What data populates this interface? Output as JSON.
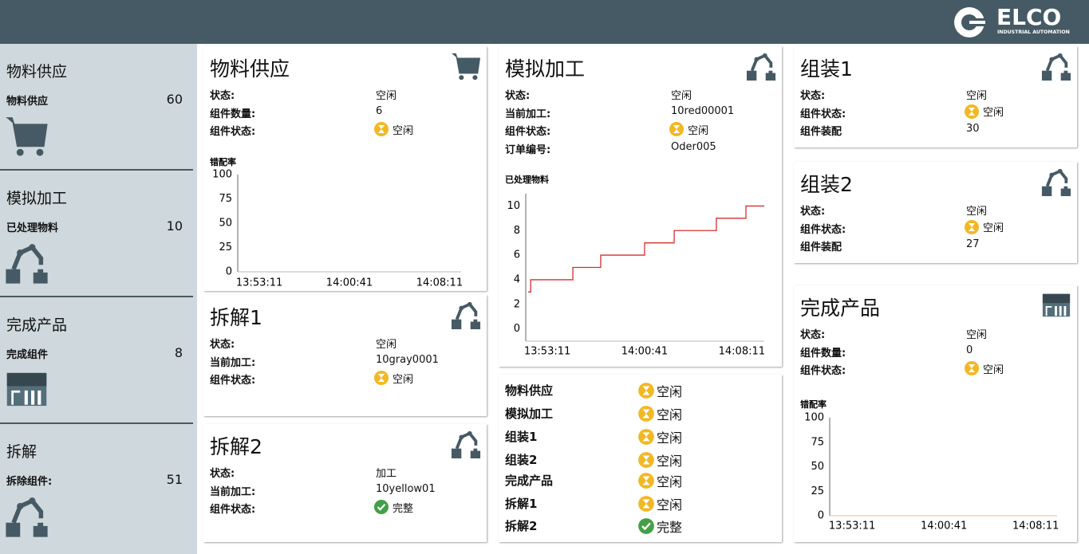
{
  "header": {
    "logo": "ELCO",
    "logo_subtitle": "INDUSTRIAL AUTOMATION"
  },
  "sidebar": [
    {
      "title": "物料供应",
      "label": "物料供应",
      "value": 60
    },
    {
      "title": "模拟加工",
      "label": "已处理物料",
      "value": 10
    },
    {
      "title": "完成产品",
      "label": "完成组件",
      "value": 8
    },
    {
      "title": "拆解",
      "label": "拆除组件:",
      "value": 51
    }
  ],
  "cards": [
    {
      "title": "物料供应",
      "fields": [
        {
          "label": "状态:",
          "value": "空闲"
        },
        {
          "label": "组件数量:",
          "value": 6
        },
        {
          "label": "组件状态:",
          "value": "空闲",
          "icon": "wait"
        }
      ],
      "chart_data": {
        "type": "line",
        "title": "错配率",
        "xlim": [
          "13:51:23",
          "14:09:59"
        ],
        "xticks": [
          "13:53:11",
          "14:00:41",
          "14:08:11"
        ],
        "ylim": [
          0,
          100
        ],
        "yticks": [
          0,
          25,
          50,
          75,
          100
        ]
      }
    },
    {
      "title": "拆解1",
      "fields": [
        {
          "label": "状态:",
          "value": "空闲"
        },
        {
          "label": "当前加工:",
          "value": "10gray0001"
        },
        {
          "label": "组件状态:",
          "value": "空闲",
          "icon": "wait"
        }
      ]
    },
    {
      "title": "拆解2",
      "fields": [
        {
          "label": "状态:",
          "value": "加工"
        },
        {
          "label": "当前加工:",
          "value": "10yellow01"
        },
        {
          "label": "组件状态:",
          "value": "完整",
          "icon": "done"
        }
      ]
    },
    {
      "title": "模拟加工",
      "fields": [
        {
          "label": "状态:",
          "value": "空闲"
        },
        {
          "label": "当前加工:",
          "value": "10red00001"
        },
        {
          "label": "组件状态:",
          "value": "空闲",
          "icon": "wait"
        },
        {
          "label": "订单编号:",
          "value": "Oder005"
        }
      ],
      "chart_data": {
        "type": "step",
        "title": "已处理物料",
        "x": [
          "13:51:42",
          "13:51:54",
          "13:55:09",
          "13:57:18",
          "14:00:41",
          "14:02:58",
          "14:06:13",
          "14:08:30",
          "14:09:55"
        ],
        "values": [
          3,
          4,
          5,
          6,
          7,
          8,
          9,
          10,
          10
        ],
        "color": "#d32f2f",
        "xlim": [
          "13:51:31",
          "14:09:55"
        ],
        "xticks": [
          "13:53:11",
          "14:00:41",
          "14:08:11"
        ],
        "ylim": [
          -1,
          11
        ],
        "yticks": [
          0,
          2,
          4,
          6,
          8,
          10
        ]
      }
    },
    {
      "title": "组装1",
      "fields": [
        {
          "label": "状态:",
          "value": "空闲"
        },
        {
          "label": "组件状态:",
          "value": "空闲",
          "icon": "wait"
        },
        {
          "label": "组件装配",
          "value": 30
        }
      ]
    },
    {
      "title": "组装2",
      "fields": [
        {
          "label": "状态:",
          "value": "空闲"
        },
        {
          "label": "组件状态:",
          "value": "空闲",
          "icon": "wait"
        },
        {
          "label": "组件装配",
          "value": 27
        }
      ]
    },
    {
      "title": "完成产品",
      "fields": [
        {
          "label": "状态:",
          "value": "空闲"
        },
        {
          "label": "组件数量:",
          "value": 0
        },
        {
          "label": "组件状态:",
          "value": "空闲",
          "icon": "wait"
        }
      ],
      "chart_data": {
        "type": "line",
        "title": "错配率",
        "x": [
          "13:51:21",
          "14:09:56"
        ],
        "values": [
          0,
          0
        ],
        "color": "#f4c7a1",
        "xlim": [
          "13:51:21",
          "14:09:56"
        ],
        "xticks": [
          "13:53:11",
          "14:00:41",
          "14:08:11"
        ],
        "ylim": [
          0,
          100
        ],
        "yticks": [
          0,
          25,
          50,
          75,
          100
        ]
      }
    }
  ],
  "status_list": [
    {
      "name": "物料供应",
      "status": "空闲",
      "icon": "wait"
    },
    {
      "name": "模拟加工",
      "status": "空闲",
      "icon": "wait"
    },
    {
      "name": "组装1",
      "status": "空闲",
      "icon": "wait"
    },
    {
      "name": "组装2",
      "status": "空闲",
      "icon": "wait"
    },
    {
      "name": "完成产品",
      "status": "空闲",
      "icon": "wait"
    },
    {
      "name": "拆解1",
      "status": "空闲",
      "icon": "wait"
    },
    {
      "name": "拆解2",
      "status": "完整",
      "icon": "done"
    }
  ]
}
